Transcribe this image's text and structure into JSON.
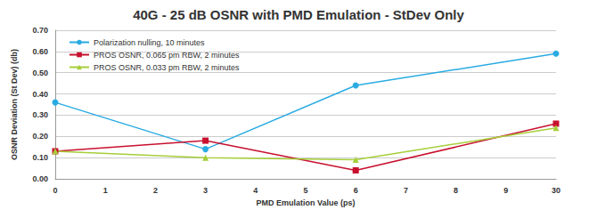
{
  "chart_data": {
    "type": "line",
    "title": "40G - 25 dB OSNR with PMD Emulation - StDev Only",
    "x_label": "PMD Emulation Value (ps)",
    "y_label": "OSNR Deviation (St Dev) (db)",
    "categories": [
      "0",
      "1",
      "2",
      "3",
      "4",
      "5",
      "6",
      "7",
      "8",
      "9",
      "30"
    ],
    "series": [
      {
        "name": "Polarization nulling, 10 minutes",
        "color": "#29abe2",
        "marker": "circle",
        "x": [
          "0",
          "3",
          "6",
          "30"
        ],
        "values": [
          0.36,
          0.14,
          0.44,
          0.59
        ]
      },
      {
        "name": "PROS OSNR, 0.065 pm RBW, 2 minutes",
        "color": "#c8102e",
        "marker": "square",
        "x": [
          "0",
          "3",
          "6",
          "30"
        ],
        "values": [
          0.13,
          0.18,
          0.04,
          0.26
        ]
      },
      {
        "name": "PROS OSNR, 0.033 pm RBW, 2 minutes",
        "color": "#a6ce39",
        "marker": "triangle",
        "x": [
          "0",
          "3",
          "6",
          "30"
        ],
        "values": [
          0.13,
          0.1,
          0.09,
          0.24
        ]
      }
    ],
    "ylim": [
      0,
      0.7
    ],
    "yticks": [
      {
        "value": 0,
        "label": "0.00"
      },
      {
        "value": 0.1,
        "label": "0.10"
      },
      {
        "value": 0.2,
        "label": "0.20"
      },
      {
        "value": 0.3,
        "label": "0.30"
      },
      {
        "value": 0.4,
        "label": "0.40"
      },
      {
        "value": 0.5,
        "label": "0.50"
      },
      {
        "value": 0.6,
        "label": "0.60"
      },
      {
        "value": 0.7,
        "label": "0.70"
      }
    ],
    "grid": true,
    "legend": "upper left"
  }
}
